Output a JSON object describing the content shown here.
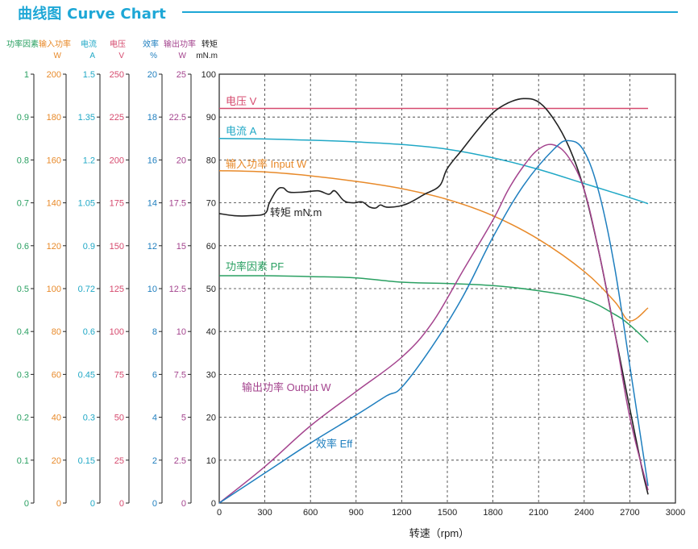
{
  "header": {
    "title": "曲线图 Curve Chart"
  },
  "colors": {
    "pf": "#2aa062",
    "input": "#e88a2a",
    "current": "#20a8c6",
    "voltage": "#d64a6e",
    "efficiency": "#1f7fbf",
    "output": "#a4448e",
    "torque": "#222222",
    "grid": "#333333"
  },
  "chart_data": {
    "type": "line",
    "title": "Curve Chart",
    "xlabel": "转速（rpm）",
    "x_range": [
      0,
      3000
    ],
    "x_ticks": [
      "0",
      "300",
      "600",
      "900",
      "1200",
      "1500",
      "1800",
      "2100",
      "2400",
      "2700",
      "3000"
    ],
    "left_axes": [
      {
        "key": "pf",
        "name": "功率因素",
        "unit": "",
        "color": "#2aa062",
        "ticks": [
          "0",
          "0.1",
          "0.2",
          "0.3",
          "0.4",
          "0.5",
          "0.6",
          "0.7",
          "0.8",
          "0.9",
          "1"
        ]
      },
      {
        "key": "input",
        "name": "输入功率",
        "unit": "W",
        "color": "#e88a2a",
        "ticks": [
          "0",
          "20",
          "40",
          "60",
          "80",
          "100",
          "120",
          "140",
          "160",
          "180",
          "200"
        ]
      },
      {
        "key": "current",
        "name": "电流",
        "unit": "A",
        "color": "#20a8c6",
        "ticks": [
          "0",
          "0.15",
          "0.3",
          "0.45",
          "0.6",
          "0.72",
          "0.9",
          "1.05",
          "1.2",
          "1.35",
          "1.5"
        ]
      },
      {
        "key": "voltage",
        "name": "电压",
        "unit": "V",
        "color": "#d64a6e",
        "ticks": [
          "0",
          "25",
          "50",
          "75",
          "100",
          "125",
          "150",
          "175",
          "200",
          "225",
          "250"
        ]
      },
      {
        "key": "efficiency",
        "name": "效率",
        "unit": "%",
        "color": "#1f7fbf",
        "ticks": [
          "0",
          "2",
          "4",
          "6",
          "8",
          "10",
          "12",
          "14",
          "16",
          "18",
          "20"
        ]
      },
      {
        "key": "output",
        "name": "输出功率",
        "unit": "W",
        "color": "#a4448e",
        "ticks": [
          "0",
          "2.5",
          "5",
          "7.5",
          "10",
          "12.5",
          "15",
          "17.5",
          "20",
          "22.5",
          "25"
        ]
      },
      {
        "key": "torque",
        "name": "转矩",
        "unit": "mN.m",
        "color": "#222222",
        "ticks": [
          "0",
          "10",
          "20",
          "30",
          "40",
          "50",
          "60",
          "70",
          "80",
          "90",
          "100"
        ]
      }
    ],
    "y_range": [
      0,
      100
    ],
    "series": [
      {
        "key": "voltage",
        "name": "电压 V",
        "color": "#d64a6e",
        "points": [
          [
            0,
            92
          ],
          [
            2820,
            92
          ]
        ]
      },
      {
        "key": "current",
        "name": "电流 A",
        "color": "#20a8c6",
        "points": [
          [
            0,
            85
          ],
          [
            300,
            84.9
          ],
          [
            600,
            84.6
          ],
          [
            900,
            84.2
          ],
          [
            1200,
            83.6
          ],
          [
            1500,
            82.5
          ],
          [
            1800,
            80.5
          ],
          [
            2100,
            77.8
          ],
          [
            2400,
            74.5
          ],
          [
            2700,
            71.2
          ],
          [
            2820,
            69.8
          ]
        ]
      },
      {
        "key": "input",
        "name": "输入功率 Input W",
        "color": "#e88a2a",
        "points": [
          [
            0,
            77.5
          ],
          [
            300,
            77.2
          ],
          [
            600,
            76.3
          ],
          [
            900,
            75
          ],
          [
            1200,
            73.3
          ],
          [
            1500,
            70.8
          ],
          [
            1800,
            67
          ],
          [
            2100,
            61.5
          ],
          [
            2400,
            54
          ],
          [
            2600,
            47
          ],
          [
            2700,
            42.5
          ],
          [
            2820,
            45.5
          ]
        ]
      },
      {
        "key": "torque",
        "name": "转矩 mN.m",
        "color": "#222222",
        "points": [
          [
            0,
            67.5
          ],
          [
            100,
            67
          ],
          [
            200,
            67
          ],
          [
            300,
            67.5
          ],
          [
            330,
            70
          ],
          [
            380,
            73
          ],
          [
            420,
            73.5
          ],
          [
            460,
            72.5
          ],
          [
            550,
            72.5
          ],
          [
            650,
            72.8
          ],
          [
            720,
            72
          ],
          [
            760,
            72.8
          ],
          [
            820,
            70.5
          ],
          [
            880,
            70
          ],
          [
            940,
            70.2
          ],
          [
            990,
            69
          ],
          [
            1030,
            68.8
          ],
          [
            1060,
            69.5
          ],
          [
            1100,
            69
          ],
          [
            1180,
            69.2
          ],
          [
            1250,
            70
          ],
          [
            1350,
            72
          ],
          [
            1450,
            74
          ],
          [
            1500,
            78
          ],
          [
            1600,
            82.5
          ],
          [
            1700,
            87
          ],
          [
            1800,
            91
          ],
          [
            1900,
            93.3
          ],
          [
            2000,
            94.3
          ],
          [
            2100,
            93.5
          ],
          [
            2200,
            89.5
          ],
          [
            2300,
            83
          ],
          [
            2400,
            73
          ],
          [
            2500,
            58
          ],
          [
            2600,
            40
          ],
          [
            2700,
            22
          ],
          [
            2780,
            8
          ],
          [
            2820,
            2
          ]
        ]
      },
      {
        "key": "pf",
        "name": "功率因素 PF",
        "color": "#2aa062",
        "points": [
          [
            0,
            53
          ],
          [
            300,
            53
          ],
          [
            600,
            52.8
          ],
          [
            900,
            52.5
          ],
          [
            1200,
            51.5
          ],
          [
            1500,
            51.2
          ],
          [
            1800,
            50.7
          ],
          [
            2100,
            49.5
          ],
          [
            2400,
            47.5
          ],
          [
            2600,
            44
          ],
          [
            2700,
            41.5
          ],
          [
            2820,
            37.5
          ]
        ]
      },
      {
        "key": "output",
        "name": "输出功率 Output W",
        "color": "#a4448e",
        "points": [
          [
            0,
            0
          ],
          [
            300,
            8.5
          ],
          [
            600,
            18
          ],
          [
            900,
            26
          ],
          [
            1200,
            34
          ],
          [
            1400,
            42
          ],
          [
            1600,
            54
          ],
          [
            1800,
            66
          ],
          [
            1900,
            73
          ],
          [
            2000,
            78.5
          ],
          [
            2100,
            82.5
          ],
          [
            2200,
            83.5
          ],
          [
            2300,
            80.5
          ],
          [
            2400,
            73
          ],
          [
            2500,
            58
          ],
          [
            2600,
            40
          ],
          [
            2700,
            20
          ],
          [
            2820,
            3
          ]
        ]
      },
      {
        "key": "efficiency",
        "name": "效率 Eff",
        "color": "#1f7fbf",
        "points": [
          [
            0,
            0
          ],
          [
            300,
            7
          ],
          [
            600,
            14
          ],
          [
            900,
            20.5
          ],
          [
            1100,
            25
          ],
          [
            1200,
            27
          ],
          [
            1400,
            36.5
          ],
          [
            1600,
            48
          ],
          [
            1800,
            62
          ],
          [
            2000,
            74
          ],
          [
            2200,
            82.5
          ],
          [
            2300,
            84.5
          ],
          [
            2400,
            82
          ],
          [
            2500,
            72
          ],
          [
            2600,
            55
          ],
          [
            2700,
            32
          ],
          [
            2820,
            4
          ]
        ]
      }
    ],
    "labels": [
      {
        "key": "voltage",
        "text": "电压 V"
      },
      {
        "key": "current",
        "text": "电流 A"
      },
      {
        "key": "input",
        "text": "输入功率 Input W"
      },
      {
        "key": "torque",
        "text": "转矩 mN.m"
      },
      {
        "key": "pf",
        "text": "功率因素 PF"
      },
      {
        "key": "output",
        "text": "输出功率 Output W"
      },
      {
        "key": "efficiency",
        "text": "效率 Eff"
      }
    ]
  }
}
